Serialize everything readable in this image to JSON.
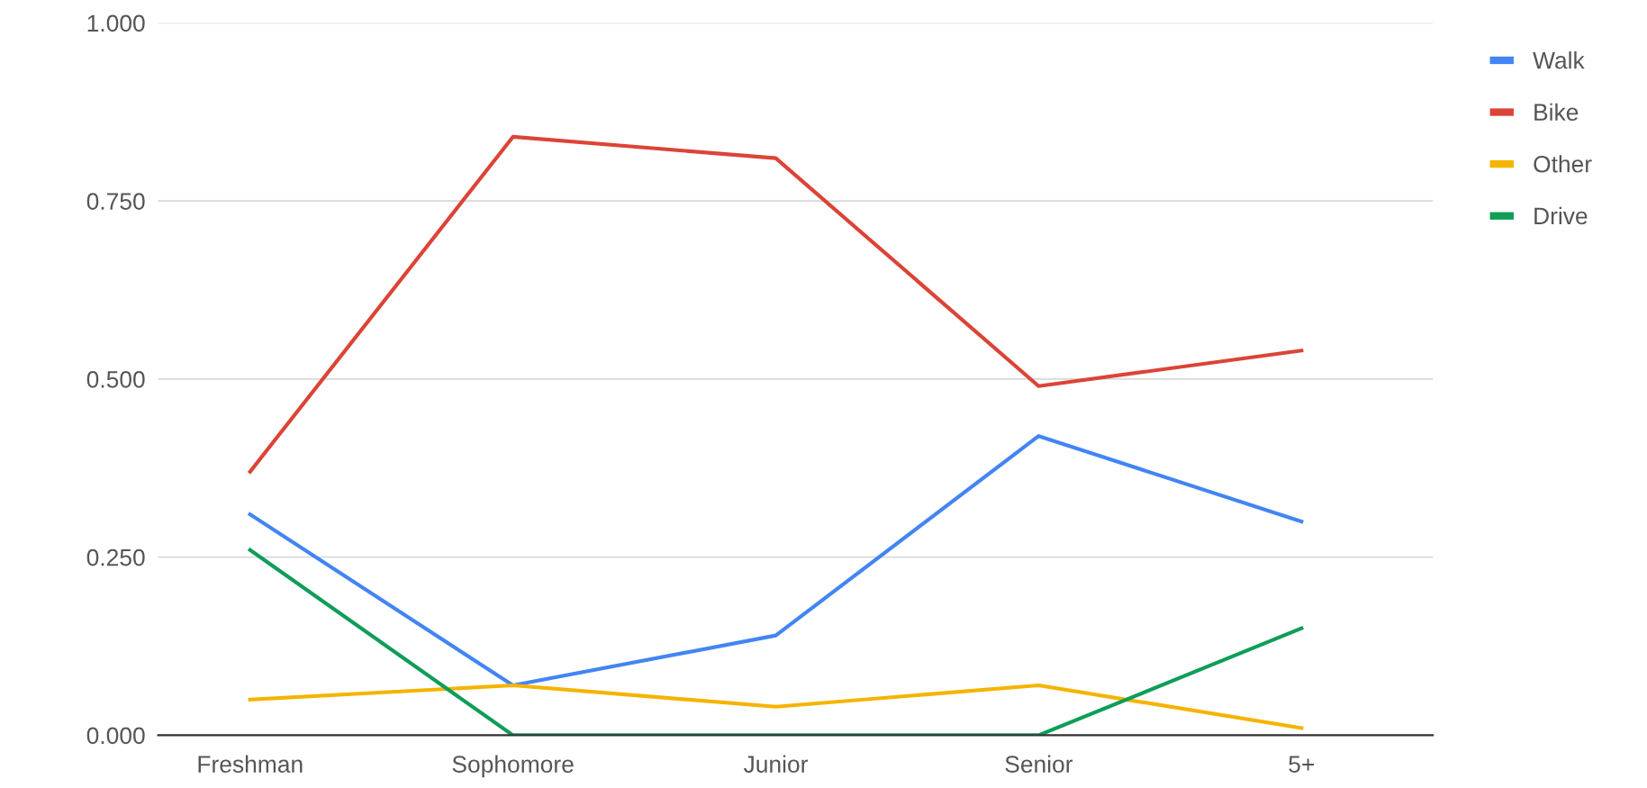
{
  "chart_data": {
    "type": "line",
    "categories": [
      "Freshman",
      "Sophomore",
      "Junior",
      "Senior",
      "5+"
    ],
    "series": [
      {
        "name": "Walk",
        "color": "#4285f4",
        "values": [
          0.31,
          0.07,
          0.14,
          0.42,
          0.3
        ]
      },
      {
        "name": "Bike",
        "color": "#db4437",
        "values": [
          0.37,
          0.84,
          0.81,
          0.49,
          0.54
        ]
      },
      {
        "name": "Other",
        "color": "#f4b400",
        "values": [
          0.05,
          0.07,
          0.04,
          0.07,
          0.01
        ]
      },
      {
        "name": "Drive",
        "color": "#0f9d58",
        "values": [
          0.26,
          0.0,
          0.0,
          0.0,
          0.15
        ]
      }
    ],
    "ylim": [
      0,
      1
    ],
    "yticks": [
      {
        "value": 0,
        "label": "0.000"
      },
      {
        "value": 0.25,
        "label": "0.250"
      },
      {
        "value": 0.5,
        "label": "0.500"
      },
      {
        "value": 0.75,
        "label": "0.750"
      },
      {
        "value": 1,
        "label": "1.000"
      }
    ],
    "grid": "y",
    "legend": "top right",
    "marker": "none",
    "line_style": "solid"
  }
}
